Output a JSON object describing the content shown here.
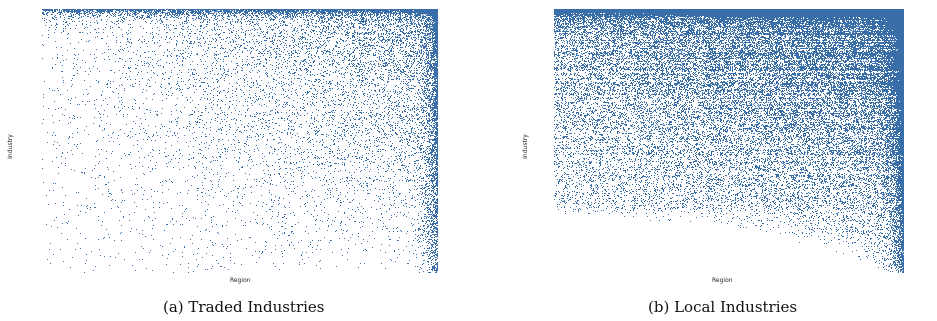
{
  "chart_data": [
    {
      "type": "heatmap",
      "title": "",
      "caption": "(a) Traded Industries",
      "xlabel": "Region",
      "ylabel": "Industry",
      "grid": false,
      "legend": "none",
      "description_values": {
        "matrix_kind": "binary presence matrix (industry x region)",
        "rows_sorted_by": "industry ubiquity, most ubiquitous at top",
        "columns_sorted_by": "region diversity, most diverse at right",
        "approx_overall_fill": 0.12
      },
      "colors": {
        "filled": "#3a6ea8",
        "empty": "#ffffff"
      }
    },
    {
      "type": "heatmap",
      "title": "",
      "caption": "(b) Local Industries",
      "xlabel": "Region",
      "ylabel": "Industry",
      "grid": false,
      "legend": "none",
      "description_values": {
        "matrix_kind": "binary presence matrix (industry x region)",
        "rows_sorted_by": "industry ubiquity, most ubiquitous at top",
        "columns_sorted_by": "region diversity, most diverse at right",
        "approx_overall_fill": 0.45
      },
      "colors": {
        "filled": "#3a6ea8",
        "empty": "#ffffff"
      }
    }
  ]
}
